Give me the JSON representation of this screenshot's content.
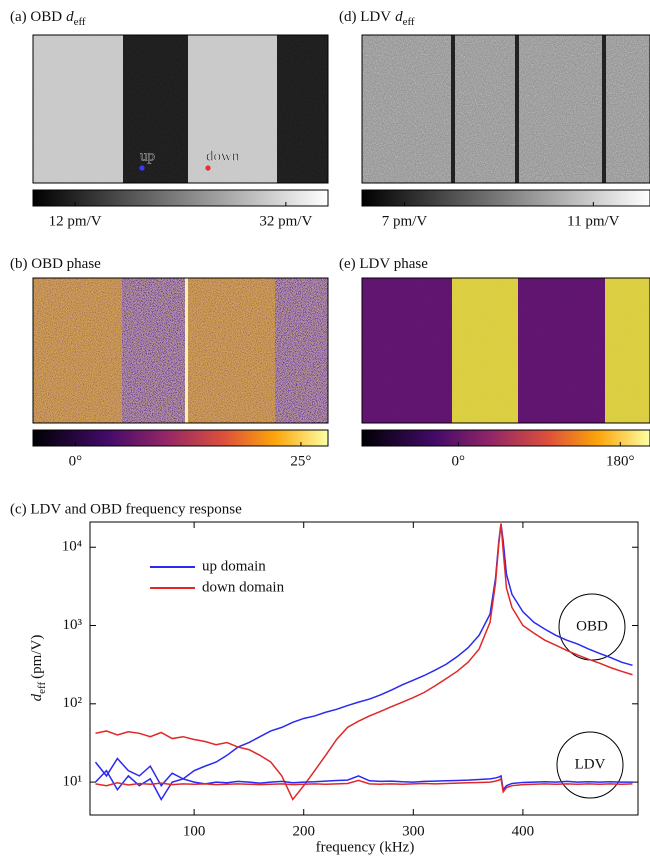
{
  "panels": [
    {
      "label": "(a) OBD",
      "symbol": "d",
      "subscript": "eff",
      "colorbar": {
        "lim": [
          8,
          36
        ],
        "ticks": [
          {
            "value": 12,
            "label": "12 pm/V"
          },
          {
            "value": 32,
            "label": "32 pm/V"
          }
        ]
      },
      "markers": [
        {
          "label": "up",
          "color": "#3b3bff"
        },
        {
          "label": "down",
          "color": "#e53030"
        }
      ]
    },
    {
      "label": "(b) OBD phase",
      "colorbar": {
        "lim": [
          -4.7,
          28
        ],
        "ticks": [
          {
            "value": 0,
            "label": "0°"
          },
          {
            "value": 25,
            "label": "25°"
          }
        ]
      }
    },
    {
      "label": "(d) LDV",
      "symbol": "d",
      "subscript": "eff",
      "colorbar": {
        "lim": [
          6.1,
          12.2
        ],
        "ticks": [
          {
            "value": 7,
            "label": "7 pm/V"
          },
          {
            "value": 11,
            "label": "11 pm/V"
          }
        ]
      }
    },
    {
      "label": "(e) LDV phase",
      "colorbar": {
        "lim": [
          -107,
          213
        ],
        "ticks": [
          {
            "value": 0,
            "label": "0°"
          },
          {
            "value": 180,
            "label": "180°"
          }
        ]
      }
    }
  ],
  "chart_data": {
    "type": "line",
    "title": "(c) LDV and OBD frequency response",
    "xlabel": "frequency (kHz)",
    "ylabel": {
      "symbol": "d",
      "subscript": "eff",
      "unit": "(pm/V)"
    },
    "log_y": true,
    "legend": "upper left",
    "xlim": [
      5,
      505
    ],
    "xticks": [
      100,
      200,
      300,
      400
    ],
    "ylim": [
      3.8,
      21000
    ],
    "yticks": [
      {
        "value": 10,
        "label": "10¹"
      },
      {
        "value": 100,
        "label": "10²"
      },
      {
        "value": 1000,
        "label": "10³"
      },
      {
        "value": 10000,
        "label": "10⁴"
      }
    ],
    "x": [
      10,
      20,
      30,
      40,
      50,
      60,
      70,
      80,
      90,
      100,
      110,
      120,
      130,
      140,
      150,
      160,
      170,
      180,
      190,
      200,
      210,
      220,
      230,
      240,
      250,
      260,
      270,
      280,
      290,
      300,
      310,
      320,
      330,
      340,
      350,
      360,
      370,
      375,
      378,
      380,
      382,
      385,
      390,
      400,
      410,
      420,
      430,
      440,
      450,
      460,
      470,
      480,
      490,
      500
    ],
    "series": [
      {
        "name": "up domain",
        "color": "#2a2af0",
        "values": [
          18,
          12,
          20,
          14,
          12,
          16,
          9,
          13,
          11,
          14,
          16,
          18,
          22,
          28,
          32,
          38,
          45,
          50,
          58,
          65,
          70,
          78,
          85,
          95,
          105,
          115,
          130,
          150,
          175,
          200,
          230,
          270,
          320,
          400,
          520,
          750,
          1400,
          4000,
          12000,
          20000,
          12000,
          4500,
          2500,
          1500,
          1100,
          900,
          750,
          650,
          580,
          500,
          440,
          390,
          340,
          310
        ]
      },
      {
        "name": "down domain",
        "color": "#e02828",
        "values": [
          42,
          45,
          40,
          44,
          42,
          38,
          43,
          36,
          38,
          35,
          33,
          30,
          32,
          28,
          26,
          22,
          18,
          12,
          6,
          9,
          14,
          22,
          35,
          50,
          60,
          70,
          80,
          92,
          105,
          120,
          140,
          170,
          210,
          260,
          340,
          500,
          1100,
          3500,
          11000,
          20000,
          9000,
          3000,
          1700,
          1000,
          800,
          650,
          560,
          480,
          420,
          370,
          330,
          290,
          260,
          235
        ]
      },
      {
        "color": "#2a2af0",
        "values": [
          10,
          14,
          8,
          12,
          9,
          11,
          6,
          10,
          11,
          10,
          9.5,
          10,
          9.8,
          10.2,
          10,
          9.7,
          10,
          10.2,
          9.8,
          10,
          10.1,
          10.3,
          10.5,
          10.6,
          12,
          10.4,
          10.2,
          10.3,
          10.1,
          10,
          10.2,
          10.3,
          10.4,
          10.5,
          10.6,
          10.8,
          11,
          11.3,
          11.6,
          12,
          8,
          9,
          9.6,
          9.9,
          10,
          10.1,
          10,
          10.2,
          10,
          10.1,
          10,
          10.1,
          10,
          10
        ]
      },
      {
        "color": "#e02828",
        "values": [
          9.5,
          9,
          9.8,
          9.2,
          9.6,
          9.4,
          9.7,
          9.3,
          9.5,
          9.4,
          9.5,
          9.3,
          9.4,
          9.5,
          9.4,
          9.3,
          9.4,
          9.5,
          9.3,
          9.4,
          9.5,
          9.4,
          9.5,
          9.6,
          10.5,
          9.5,
          9.4,
          9.5,
          9.4,
          9.5,
          9.6,
          9.5,
          9.6,
          9.7,
          9.8,
          9.9,
          10,
          10.3,
          10.6,
          11,
          7.5,
          8.5,
          9,
          9.3,
          9.4,
          9.5,
          9.4,
          9.5,
          9.4,
          9.5,
          9.4,
          9.5,
          9.4,
          9.5
        ]
      }
    ],
    "annotations": [
      "OBD",
      "LDV"
    ]
  }
}
